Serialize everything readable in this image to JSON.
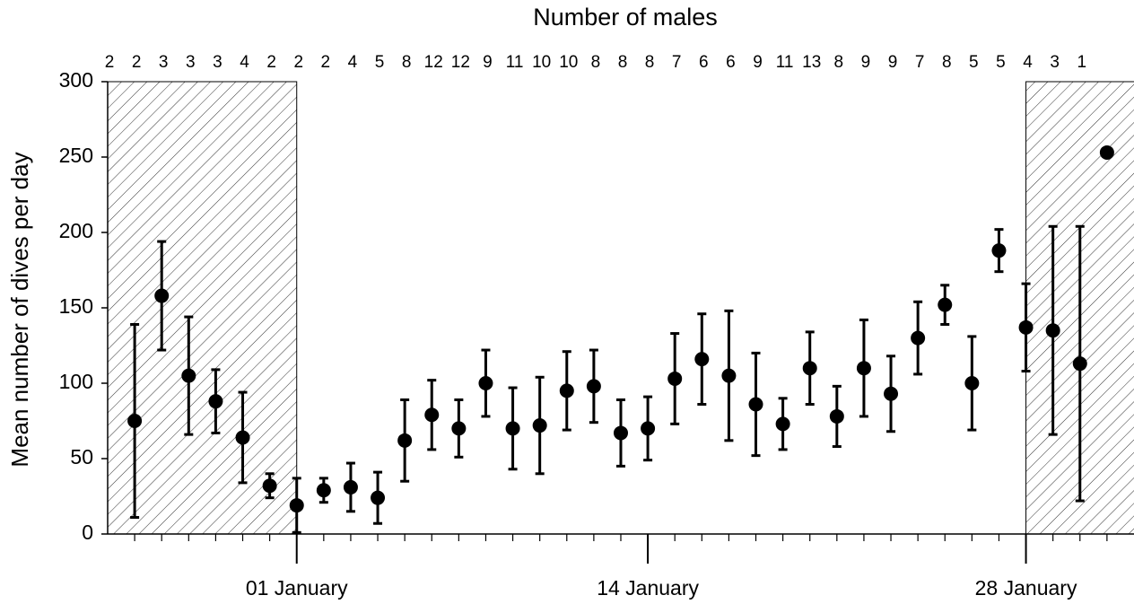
{
  "chart_data": {
    "type": "scatter",
    "title": "Number of males",
    "y_label": "Mean number of dives per day",
    "x": [
      -5,
      -4,
      -3,
      -2,
      -1,
      0,
      1,
      2,
      3,
      4,
      5,
      6,
      7,
      8,
      9,
      10,
      11,
      12,
      13,
      14,
      15,
      16,
      17,
      18,
      19,
      20,
      21,
      22,
      23,
      24,
      25,
      26,
      27,
      28,
      29,
      30,
      31
    ],
    "values": [
      75,
      158,
      105,
      88,
      64,
      32,
      19,
      29,
      31,
      24,
      62,
      79,
      70,
      100,
      70,
      72,
      95,
      98,
      67,
      70,
      103,
      116,
      105,
      86,
      73,
      110,
      78,
      110,
      93,
      130,
      152,
      100,
      188,
      137,
      135,
      113,
      253
    ],
    "errors": [
      64,
      36,
      39,
      21,
      30,
      8,
      18,
      8,
      16,
      17,
      27,
      23,
      19,
      22,
      27,
      32,
      26,
      24,
      22,
      21,
      30,
      30,
      43,
      34,
      17,
      24,
      20,
      32,
      25,
      24,
      13,
      31,
      14,
      29,
      69,
      91,
      null
    ],
    "color": "#000000",
    "xlim": [
      -6,
      32.2
    ],
    "ylim": [
      0,
      300
    ],
    "yticks": [
      0,
      50,
      100,
      150,
      200,
      250,
      300
    ],
    "xticks": [
      {
        "value": 1,
        "label": "01 January"
      },
      {
        "value": 14,
        "label": "14 January"
      },
      {
        "value": 28,
        "label": "28 January"
      }
    ],
    "shaded_ranges": [
      [
        -6,
        1
      ],
      [
        28,
        32.2
      ]
    ],
    "males": {
      "x": [
        -6,
        -5,
        -4,
        -3,
        -2,
        -1,
        0,
        1,
        2,
        3,
        4,
        5,
        6,
        7,
        8,
        9,
        10,
        11,
        12,
        13,
        14,
        15,
        16,
        17,
        18,
        19,
        20,
        21,
        22,
        23,
        24,
        25,
        26,
        27,
        28,
        29,
        30
      ],
      "values": [
        2,
        2,
        3,
        3,
        3,
        4,
        2,
        2,
        2,
        4,
        5,
        8,
        12,
        12,
        9,
        11,
        10,
        10,
        8,
        8,
        8,
        7,
        6,
        6,
        9,
        11,
        13,
        8,
        9,
        9,
        7,
        8,
        5,
        5,
        4,
        3,
        1
      ]
    }
  }
}
